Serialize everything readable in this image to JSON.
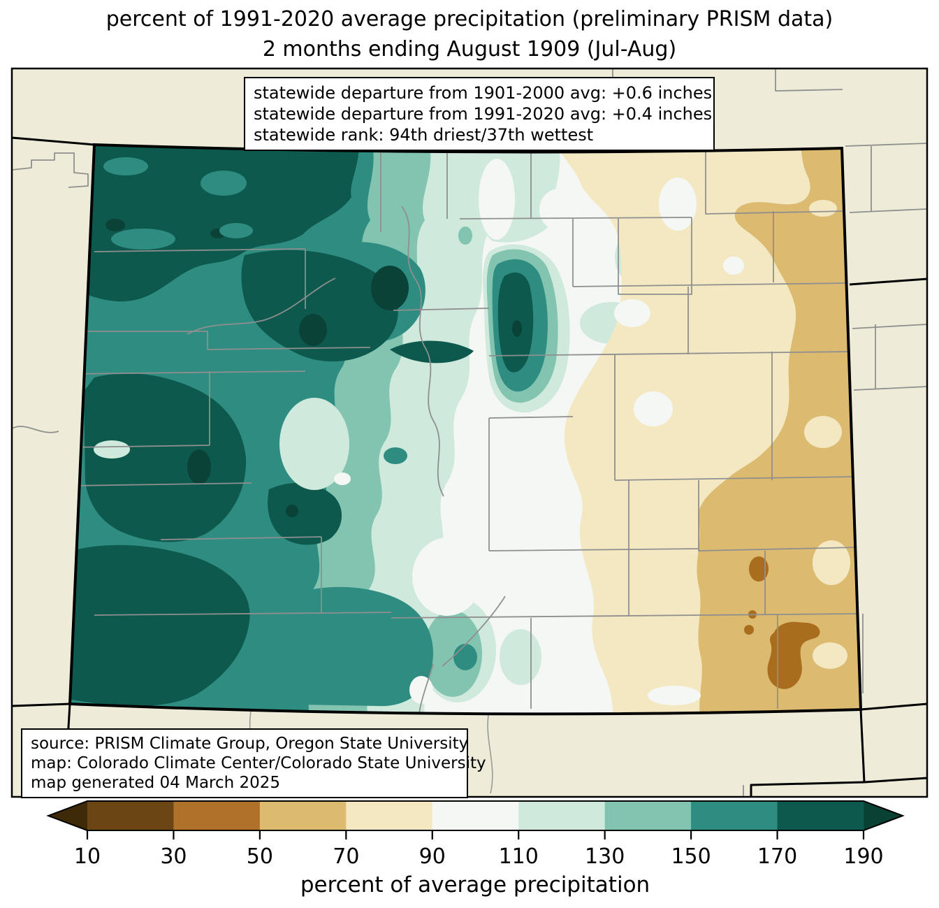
{
  "title": {
    "line1": "percent of 1991-2020 average precipitation (preliminary PRISM data)",
    "line2": "2 months ending August 1909 (Jul-Aug)"
  },
  "stats_box": {
    "lines": [
      "statewide departure from 1901-2000 avg: +0.6 inches",
      "statewide departure from 1991-2020 avg: +0.4 inches",
      "statewide rank: 94th driest/37th wettest"
    ]
  },
  "source_box": {
    "lines": [
      "source: PRISM Climate Group, Oregon State University",
      "map: Colorado Climate Center/Colorado State University",
      "map generated 04 March 2025"
    ]
  },
  "colorbar": {
    "axis_label": "percent of average precipitation",
    "tick_labels": [
      "10",
      "30",
      "50",
      "70",
      "90",
      "110",
      "130",
      "150",
      "170",
      "190"
    ],
    "arrow_left_color": "#3e2908",
    "arrow_right_color": "#0a4135",
    "segments": [
      {
        "range": "10-30",
        "color": "#6b4513"
      },
      {
        "range": "30-50",
        "color": "#b0722a"
      },
      {
        "range": "50-70",
        "color": "#dcba70"
      },
      {
        "range": "70-90",
        "color": "#f3e8c2"
      },
      {
        "range": "90-110",
        "color": "#f4f7f4"
      },
      {
        "range": "110-130",
        "color": "#cfe9dd"
      },
      {
        "range": "130-150",
        "color": "#82c4b0"
      },
      {
        "range": "150-170",
        "color": "#2e8c80"
      },
      {
        "range": "170-190",
        "color": "#0d594e"
      }
    ]
  },
  "map": {
    "outside_fill": "#eeecd8",
    "state_fill_base": "#f4f7f4",
    "county_line_color": "#8f8f8f",
    "state_border_color": "#000000",
    "over_190_color": "#0b4237"
  }
}
